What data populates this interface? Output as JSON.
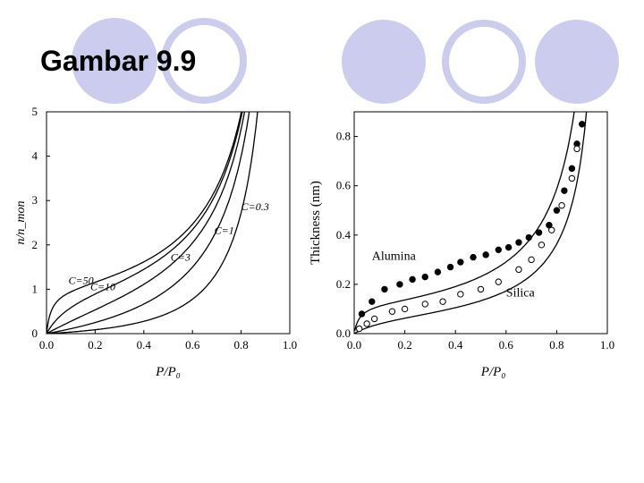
{
  "slide": {
    "title": "Gambar 9.9"
  },
  "colors": {
    "accent": "#ccccee",
    "ink": "#000000"
  },
  "chart_data": [
    {
      "type": "line",
      "ylabel": "n/n_mon",
      "xlabel": "P/P₀",
      "xlim": [
        0,
        1
      ],
      "ylim": [
        0,
        5
      ],
      "x_ticks": [
        "0.0",
        "0.2",
        "0.4",
        "0.6",
        "0.8",
        "1.0"
      ],
      "y_ticks": [
        "0",
        "1",
        "2",
        "3",
        "4",
        "5"
      ],
      "series": [
        {
          "name": "C=50",
          "C": 50,
          "label": "C=50"
        },
        {
          "name": "C=10",
          "C": 10,
          "label": "C=10"
        },
        {
          "name": "C=3",
          "C": 3,
          "label": "C=3"
        },
        {
          "name": "C=1",
          "C": 1,
          "label": "C=1"
        },
        {
          "name": "C=0.3",
          "C": 0.3,
          "label": "C=0.3"
        }
      ]
    },
    {
      "type": "scatter",
      "ylabel": "Thickness (nm)",
      "xlabel": "P/P₀",
      "xlim": [
        0,
        1
      ],
      "ylim": [
        0,
        0.9
      ],
      "x_ticks": [
        "0.0",
        "0.2",
        "0.4",
        "0.6",
        "0.8",
        "1.0"
      ],
      "y_ticks": [
        "0.0",
        "0.2",
        "0.4",
        "0.6",
        "0.8"
      ],
      "series": [
        {
          "name": "Alumina",
          "label": "Alumina",
          "marker": "filled",
          "x": [
            0.03,
            0.07,
            0.12,
            0.18,
            0.23,
            0.28,
            0.33,
            0.38,
            0.42,
            0.47,
            0.52,
            0.57,
            0.61,
            0.65,
            0.69,
            0.73,
            0.77,
            0.8,
            0.83,
            0.86,
            0.88,
            0.9
          ],
          "y": [
            0.08,
            0.13,
            0.18,
            0.2,
            0.22,
            0.23,
            0.25,
            0.27,
            0.29,
            0.31,
            0.32,
            0.34,
            0.35,
            0.37,
            0.39,
            0.41,
            0.44,
            0.5,
            0.58,
            0.67,
            0.77,
            0.85
          ]
        },
        {
          "name": "Silica",
          "label": "Silica",
          "marker": "open",
          "x": [
            0.02,
            0.05,
            0.08,
            0.15,
            0.2,
            0.28,
            0.35,
            0.42,
            0.5,
            0.57,
            0.65,
            0.7,
            0.74,
            0.78,
            0.82,
            0.86,
            0.88
          ],
          "y": [
            0.02,
            0.04,
            0.06,
            0.09,
            0.1,
            0.12,
            0.13,
            0.16,
            0.18,
            0.21,
            0.26,
            0.3,
            0.36,
            0.42,
            0.52,
            0.63,
            0.75
          ]
        },
        {
          "name": "Alumina fit",
          "curve": "alumina"
        },
        {
          "name": "Silica fit",
          "curve": "silica"
        }
      ]
    }
  ]
}
